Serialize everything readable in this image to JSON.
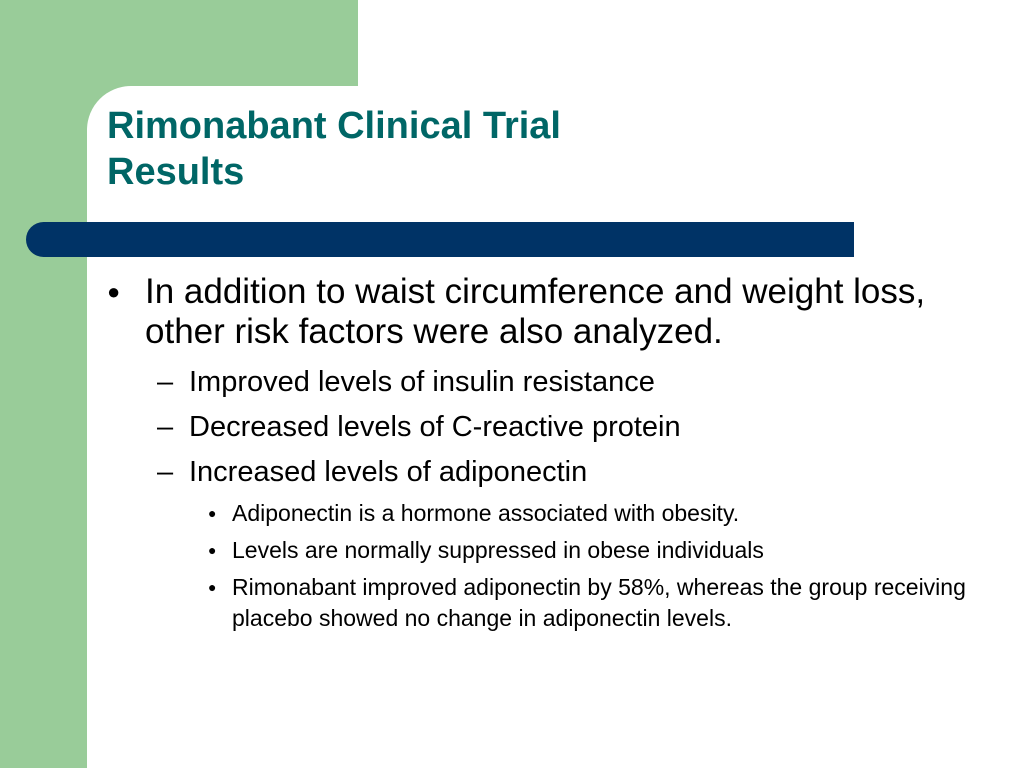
{
  "slide": {
    "title_line1": "Rimonabant Clinical Trial",
    "title_line2": "Results",
    "colors": {
      "title": "#006666",
      "bar": "#003366",
      "accent_green": "#99cc99"
    },
    "bullets": {
      "main": {
        "marker": "●",
        "text": "In addition to waist circumference and weight loss, other risk factors were also analyzed."
      },
      "sub": [
        {
          "marker": "–",
          "text": "Improved levels of insulin resistance"
        },
        {
          "marker": "–",
          "text": "Decreased levels of C-reactive protein"
        },
        {
          "marker": "–",
          "text": "Increased levels of adiponectin"
        }
      ],
      "subsub": [
        {
          "marker": "●",
          "text": "Adiponectin is a hormone associated with obesity."
        },
        {
          "marker": "●",
          "text": "Levels are normally suppressed in obese individuals"
        },
        {
          "marker": "●",
          "text": "Rimonabant improved adiponectin by 58%, whereas the group receiving placebo showed no change in adiponectin levels."
        }
      ]
    }
  }
}
